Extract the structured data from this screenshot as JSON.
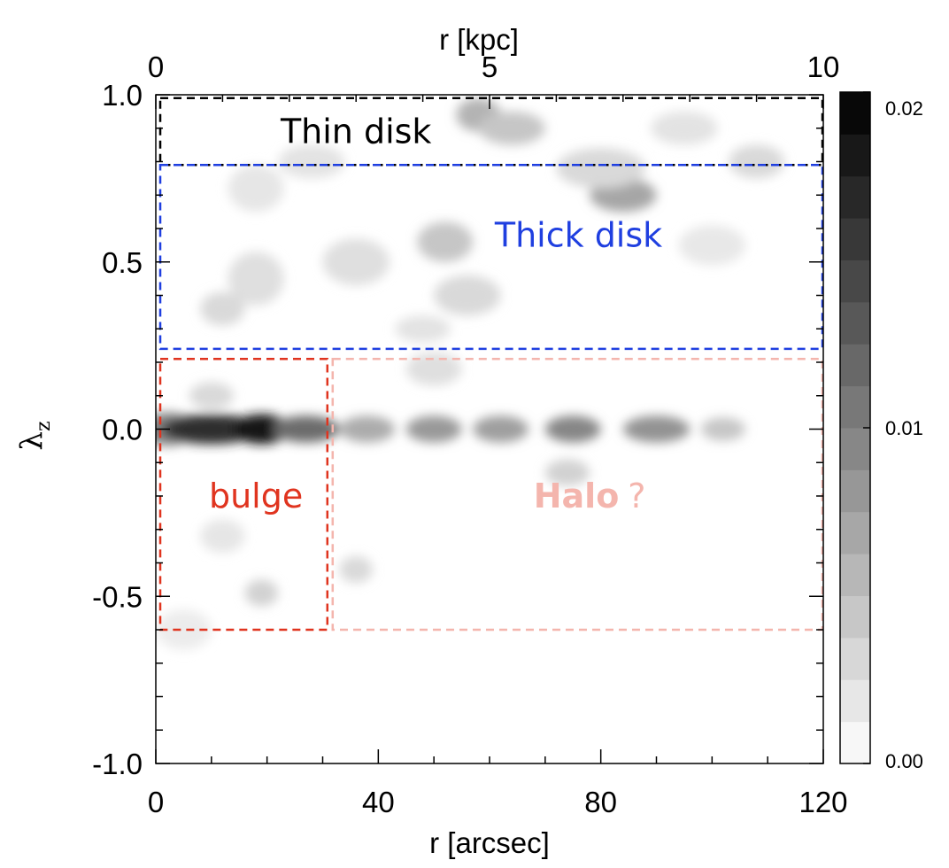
{
  "chart_data": {
    "type": "heatmap",
    "title": "",
    "xlabel": "r [arcsec]",
    "xlim": [
      0,
      120
    ],
    "x_ticks": [
      "0",
      "40",
      "80",
      "120"
    ],
    "x2label": "r [kpc]",
    "x2lim": [
      0,
      10
    ],
    "x2_ticks": [
      "0",
      "5",
      "10"
    ],
    "ylabel": "λ",
    "ylabel_sub": "z",
    "ylim": [
      -1.0,
      1.0
    ],
    "y_ticks": [
      "1.0",
      "0.5",
      "0.0",
      "-0.5",
      "-1.0"
    ],
    "colorbar": {
      "range": [
        0.0,
        0.02
      ],
      "ticks": [
        "0.02",
        "0.01",
        "0.00"
      ],
      "colormap": "white-to-black",
      "levels": 16
    },
    "features": [
      {
        "r": 2,
        "lz": 0.0,
        "w": 5,
        "h": 0.05,
        "v": 0.0095
      },
      {
        "r": 10,
        "lz": 0.0,
        "w": 9,
        "h": 0.045,
        "v": 0.0165
      },
      {
        "r": 19,
        "lz": 0.0,
        "w": 5,
        "h": 0.045,
        "v": 0.0185
      },
      {
        "r": 27,
        "lz": 0.0,
        "w": 6,
        "h": 0.04,
        "v": 0.0115
      },
      {
        "r": 38,
        "lz": 0.0,
        "w": 5,
        "h": 0.04,
        "v": 0.0065
      },
      {
        "r": 50,
        "lz": 0.0,
        "w": 5,
        "h": 0.04,
        "v": 0.008
      },
      {
        "r": 62,
        "lz": 0.0,
        "w": 5,
        "h": 0.04,
        "v": 0.0075
      },
      {
        "r": 75,
        "lz": 0.0,
        "w": 5,
        "h": 0.04,
        "v": 0.0095
      },
      {
        "r": 90,
        "lz": 0.0,
        "w": 6,
        "h": 0.04,
        "v": 0.0085
      },
      {
        "r": 102,
        "lz": 0.0,
        "w": 4,
        "h": 0.035,
        "v": 0.0045
      },
      {
        "r": 58,
        "lz": 0.94,
        "w": 4,
        "h": 0.05,
        "v": 0.006
      },
      {
        "r": 64,
        "lz": 0.9,
        "w": 6,
        "h": 0.05,
        "v": 0.0045
      },
      {
        "r": 84,
        "lz": 0.7,
        "w": 6,
        "h": 0.05,
        "v": 0.007
      },
      {
        "r": 80,
        "lz": 0.78,
        "w": 8,
        "h": 0.06,
        "v": 0.003
      },
      {
        "r": 52,
        "lz": 0.56,
        "w": 5,
        "h": 0.06,
        "v": 0.0045
      },
      {
        "r": 56,
        "lz": 0.4,
        "w": 6,
        "h": 0.06,
        "v": 0.003
      },
      {
        "r": 36,
        "lz": 0.5,
        "w": 6,
        "h": 0.07,
        "v": 0.0025
      },
      {
        "r": 18,
        "lz": 0.45,
        "w": 5,
        "h": 0.08,
        "v": 0.0025
      },
      {
        "r": 12,
        "lz": 0.36,
        "w": 4,
        "h": 0.05,
        "v": 0.003
      },
      {
        "r": 18,
        "lz": 0.72,
        "w": 5,
        "h": 0.07,
        "v": 0.002
      },
      {
        "r": 28,
        "lz": 0.8,
        "w": 6,
        "h": 0.05,
        "v": 0.0022
      },
      {
        "r": 108,
        "lz": 0.8,
        "w": 5,
        "h": 0.05,
        "v": 0.003
      },
      {
        "r": 95,
        "lz": 0.9,
        "w": 6,
        "h": 0.05,
        "v": 0.0022
      },
      {
        "r": 48,
        "lz": 0.3,
        "w": 5,
        "h": 0.04,
        "v": 0.0022
      },
      {
        "r": 100,
        "lz": 0.55,
        "w": 6,
        "h": 0.06,
        "v": 0.0018
      },
      {
        "r": 10,
        "lz": 0.1,
        "w": 4,
        "h": 0.04,
        "v": 0.003
      },
      {
        "r": 50,
        "lz": 0.18,
        "w": 5,
        "h": 0.05,
        "v": 0.0025
      },
      {
        "r": 12,
        "lz": -0.32,
        "w": 4,
        "h": 0.05,
        "v": 0.002
      },
      {
        "r": 19,
        "lz": -0.49,
        "w": 3,
        "h": 0.04,
        "v": 0.0035
      },
      {
        "r": 36,
        "lz": -0.42,
        "w": 3,
        "h": 0.04,
        "v": 0.003
      },
      {
        "r": 74,
        "lz": -0.13,
        "w": 4,
        "h": 0.04,
        "v": 0.0035
      },
      {
        "r": 5,
        "lz": -0.6,
        "w": 5,
        "h": 0.06,
        "v": 0.0015
      }
    ],
    "regions": [
      {
        "label": "Thin disk",
        "color": "#000000",
        "r": [
          0,
          120
        ],
        "lz": [
          0.79,
          0.99
        ],
        "label_at": [
          36,
          0.89
        ]
      },
      {
        "label": "Thick disk",
        "color": "#1f3fe0",
        "r": [
          0,
          120
        ],
        "lz": [
          0.24,
          0.79
        ],
        "label_at": [
          76,
          0.58
        ]
      },
      {
        "label": "bulge",
        "color": "#e0341f",
        "r": [
          0,
          31
        ],
        "lz": [
          -0.6,
          0.21
        ],
        "label_at": [
          18,
          -0.2
        ]
      },
      {
        "label": "Halo",
        "suffix": "?",
        "color": "#f4b5ad",
        "r": [
          31,
          120
        ],
        "lz": [
          -0.6,
          0.21
        ],
        "label_at": [
          78,
          -0.2
        ]
      }
    ]
  }
}
